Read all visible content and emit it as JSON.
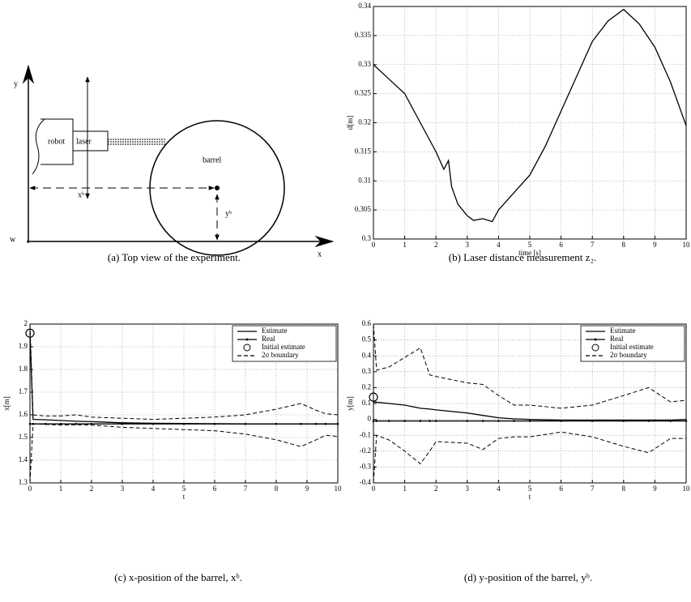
{
  "diagram": {
    "y_axis": "y",
    "origin": "w",
    "x_axis": "x",
    "robot": "robot",
    "laser": "laser",
    "barrel": "barrel",
    "xb": "xᵇ",
    "yb": "yᵇ"
  },
  "captions": [
    "(a)  Top view of the experiment.",
    "(b)  Laser distance measurement z₂.",
    "(c)  x-position of the barrel, xᵇ.",
    "(d)  y-position of the barrel, yᵇ."
  ],
  "chart_data": [
    {
      "type": "line",
      "xlabel": "time [s]",
      "ylabel": "d[m]",
      "grid": true,
      "xlim": [
        0,
        10
      ],
      "xticks": [
        0,
        1,
        2,
        3,
        4,
        5,
        6,
        7,
        8,
        9,
        10
      ],
      "ylim": [
        0.3,
        0.34
      ],
      "yticks": [
        0.3,
        0.305,
        0.31,
        0.315,
        0.32,
        0.325,
        0.33,
        0.335,
        0.34
      ],
      "x": [
        0,
        0.5,
        1,
        1.5,
        2,
        2.25,
        2.4,
        2.5,
        2.7,
        3,
        3.2,
        3.5,
        3.8,
        4,
        4.5,
        5,
        5.5,
        6,
        6.5,
        7,
        7.5,
        8,
        8.3,
        8.5,
        9,
        9.5,
        10
      ],
      "series": [
        {
          "color": "#000",
          "style": "solid",
          "values": [
            0.33,
            0.3275,
            0.325,
            0.32,
            0.315,
            0.312,
            0.3135,
            0.309,
            0.306,
            0.304,
            0.3032,
            0.3035,
            0.303,
            0.305,
            0.308,
            0.311,
            0.316,
            0.322,
            0.328,
            0.334,
            0.3375,
            0.3395,
            0.338,
            0.337,
            0.333,
            0.327,
            0.3195
          ]
        }
      ]
    },
    {
      "type": "line",
      "xlabel": "t",
      "ylabel": "x[m]",
      "grid": true,
      "legend": "top-right",
      "xlim": [
        0,
        10
      ],
      "xticks": [
        0,
        1,
        2,
        3,
        4,
        5,
        6,
        7,
        8,
        9,
        10
      ],
      "ylim": [
        1.3,
        2
      ],
      "yticks": [
        1.3,
        1.4,
        1.5,
        1.6,
        1.7,
        1.8,
        1.9,
        2
      ],
      "x": [
        0,
        0.1,
        0.5,
        1,
        1.5,
        2,
        3,
        4,
        5,
        6,
        7,
        8,
        8.8,
        9.3,
        9.6,
        10
      ],
      "series": [
        {
          "name": "Estimate",
          "color": "#000",
          "style": "solid",
          "values": [
            1.96,
            1.58,
            1.578,
            1.575,
            1.572,
            1.57,
            1.565,
            1.563,
            1.562,
            1.561,
            1.56,
            1.56,
            1.56,
            1.56,
            1.56,
            1.56
          ]
        },
        {
          "name": "Real",
          "color": "#000",
          "style": "dots",
          "values": [
            1.56,
            1.56,
            1.56,
            1.56,
            1.56,
            1.56,
            1.56,
            1.56,
            1.56,
            1.56,
            1.56,
            1.56,
            1.56,
            1.56,
            1.56,
            1.56
          ]
        },
        {
          "name": "Initial estimate",
          "color": "#000",
          "style": "marker",
          "x": [
            0
          ],
          "values": [
            1.96
          ]
        },
        {
          "name": "2σ boundary",
          "color": "#000",
          "style": "dashed",
          "upper": [
            2,
            1.6,
            1.595,
            1.595,
            1.6,
            1.59,
            1.585,
            1.58,
            1.585,
            1.59,
            1.6,
            1.625,
            1.65,
            1.62,
            1.605,
            1.6
          ],
          "lower": [
            1.3,
            1.56,
            1.558,
            1.555,
            1.556,
            1.555,
            1.545,
            1.54,
            1.535,
            1.53,
            1.515,
            1.49,
            1.46,
            1.49,
            1.51,
            1.505
          ]
        }
      ]
    },
    {
      "type": "line",
      "xlabel": "t",
      "ylabel": "y[m]",
      "grid": true,
      "legend": "top-right",
      "xlim": [
        0,
        10
      ],
      "xticks": [
        0,
        1,
        2,
        3,
        4,
        5,
        6,
        7,
        8,
        9,
        10
      ],
      "ylim": [
        -0.4,
        0.6
      ],
      "yticks": [
        -0.4,
        -0.3,
        -0.2,
        -0.1,
        0,
        0.1,
        0.2,
        0.3,
        0.4,
        0.5,
        0.6
      ],
      "x": [
        0,
        0.1,
        0.5,
        1,
        1.5,
        1.8,
        2,
        3,
        3.5,
        4,
        4.5,
        5,
        6,
        7,
        8,
        8.8,
        9.5,
        10
      ],
      "series": [
        {
          "name": "Estimate",
          "color": "#000",
          "style": "solid",
          "values": [
            0.11,
            0.108,
            0.1,
            0.09,
            0.07,
            0.065,
            0.06,
            0.04,
            0.025,
            0.01,
            0.003,
            0,
            -0.005,
            -0.005,
            -0.005,
            -0.005,
            -0.005,
            0
          ]
        },
        {
          "name": "Real",
          "color": "#000",
          "style": "dots",
          "values": [
            -0.01,
            -0.01,
            -0.01,
            -0.01,
            -0.01,
            -0.01,
            -0.01,
            -0.01,
            -0.01,
            -0.01,
            -0.01,
            -0.01,
            -0.01,
            -0.01,
            -0.01,
            -0.01,
            -0.01,
            -0.01
          ]
        },
        {
          "name": "Initial estimate",
          "color": "#000",
          "style": "marker",
          "x": [
            0
          ],
          "values": [
            0.14
          ]
        },
        {
          "name": "2σ boundary",
          "color": "#000",
          "style": "dashed",
          "upper": [
            0.6,
            0.31,
            0.33,
            0.39,
            0.45,
            0.28,
            0.27,
            0.23,
            0.22,
            0.15,
            0.09,
            0.09,
            0.07,
            0.09,
            0.15,
            0.2,
            0.11,
            0.12
          ],
          "lower": [
            -0.4,
            -0.1,
            -0.13,
            -0.2,
            -0.28,
            -0.2,
            -0.14,
            -0.15,
            -0.19,
            -0.12,
            -0.11,
            -0.11,
            -0.08,
            -0.11,
            -0.17,
            -0.21,
            -0.12,
            -0.12
          ]
        }
      ]
    }
  ]
}
